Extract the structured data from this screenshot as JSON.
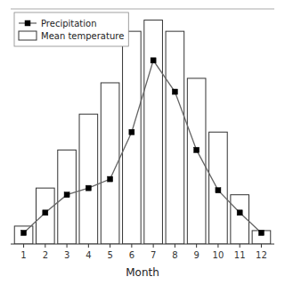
{
  "chart_data": {
    "type": "bar",
    "xlabel": "Month",
    "x": [
      1,
      2,
      3,
      4,
      5,
      6,
      7,
      8,
      9,
      10,
      11,
      12
    ],
    "series": [
      {
        "name": "Precipitation",
        "type": "line",
        "color": "#666666",
        "marker": "square",
        "values": [
          5,
          14,
          22,
          25,
          29,
          50,
          82,
          68,
          42,
          24,
          14,
          5
        ]
      },
      {
        "name": "Mean temperature",
        "type": "bar",
        "color": "#ffffff",
        "values": [
          8,
          25,
          42,
          58,
          72,
          95,
          100,
          95,
          74,
          50,
          22,
          6
        ]
      }
    ],
    "xlim": [
      0.4,
      12.6
    ],
    "xticks": [
      1,
      2,
      3,
      4,
      5,
      6,
      7,
      8,
      9,
      10,
      11,
      12
    ],
    "ylim": [
      0,
      105
    ],
    "grid": false,
    "legend": "upper left",
    "tick_labels": "x"
  }
}
